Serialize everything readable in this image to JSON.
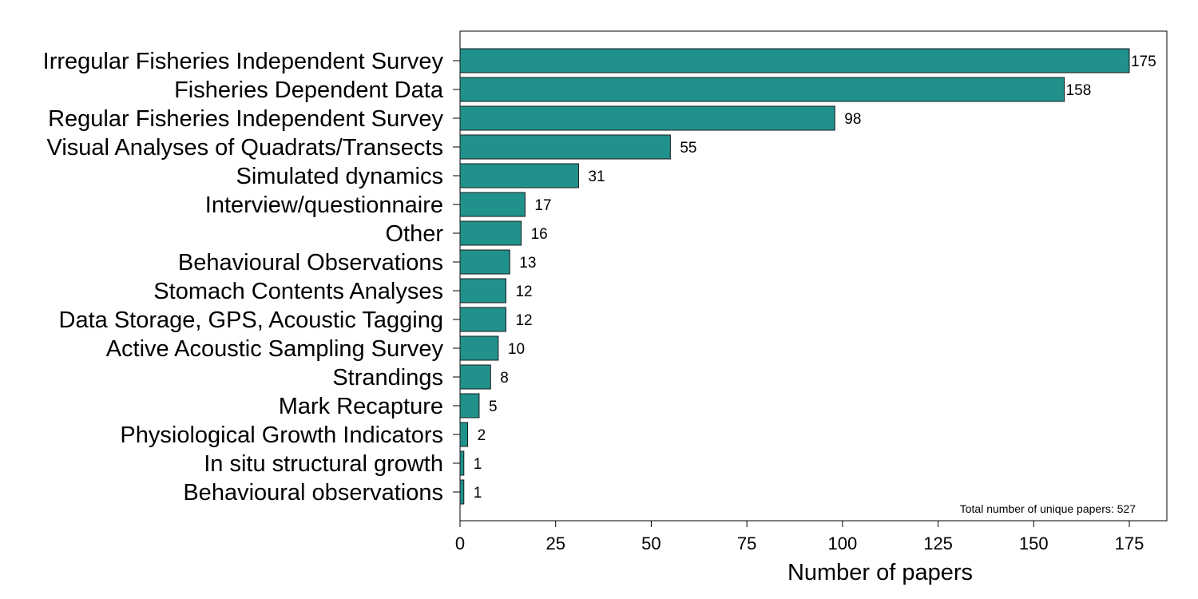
{
  "chart_data": {
    "type": "bar",
    "orientation": "horizontal",
    "categories": [
      "Irregular Fisheries Independent Survey",
      "Fisheries Dependent Data",
      "Regular Fisheries Independent Survey",
      "Visual Analyses of Quadrats/Transects",
      "Simulated dynamics",
      "Interview/questionnaire",
      "Other",
      "Behavioural Observations",
      "Stomach Contents Analyses",
      "Data Storage, GPS, Acoustic Tagging",
      "Active Acoustic Sampling Survey",
      "Strandings",
      "Mark Recapture",
      "Physiological Growth Indicators",
      "In situ structural growth",
      "Behavioural observations"
    ],
    "values": [
      175,
      158,
      98,
      55,
      31,
      17,
      16,
      13,
      12,
      12,
      10,
      8,
      5,
      2,
      1,
      1
    ],
    "value_labels": [
      "175",
      "158",
      "98",
      "55",
      "31",
      "17",
      "16",
      "13",
      "12",
      "12",
      "10",
      "8",
      "5",
      "2",
      "1",
      "1"
    ],
    "xlabel": "Number of papers",
    "ylabel": "",
    "xlim": [
      0,
      185
    ],
    "xticks": [
      0,
      25,
      50,
      75,
      100,
      125,
      150,
      175
    ],
    "xtick_labels": [
      "0",
      "25",
      "50",
      "75",
      "100",
      "125",
      "150",
      "175"
    ],
    "annotation": "Total number of unique papers: 527",
    "bar_color": "#21918c",
    "bar_edge_color": "#1a1a1a",
    "grid": false,
    "legend": "none"
  }
}
